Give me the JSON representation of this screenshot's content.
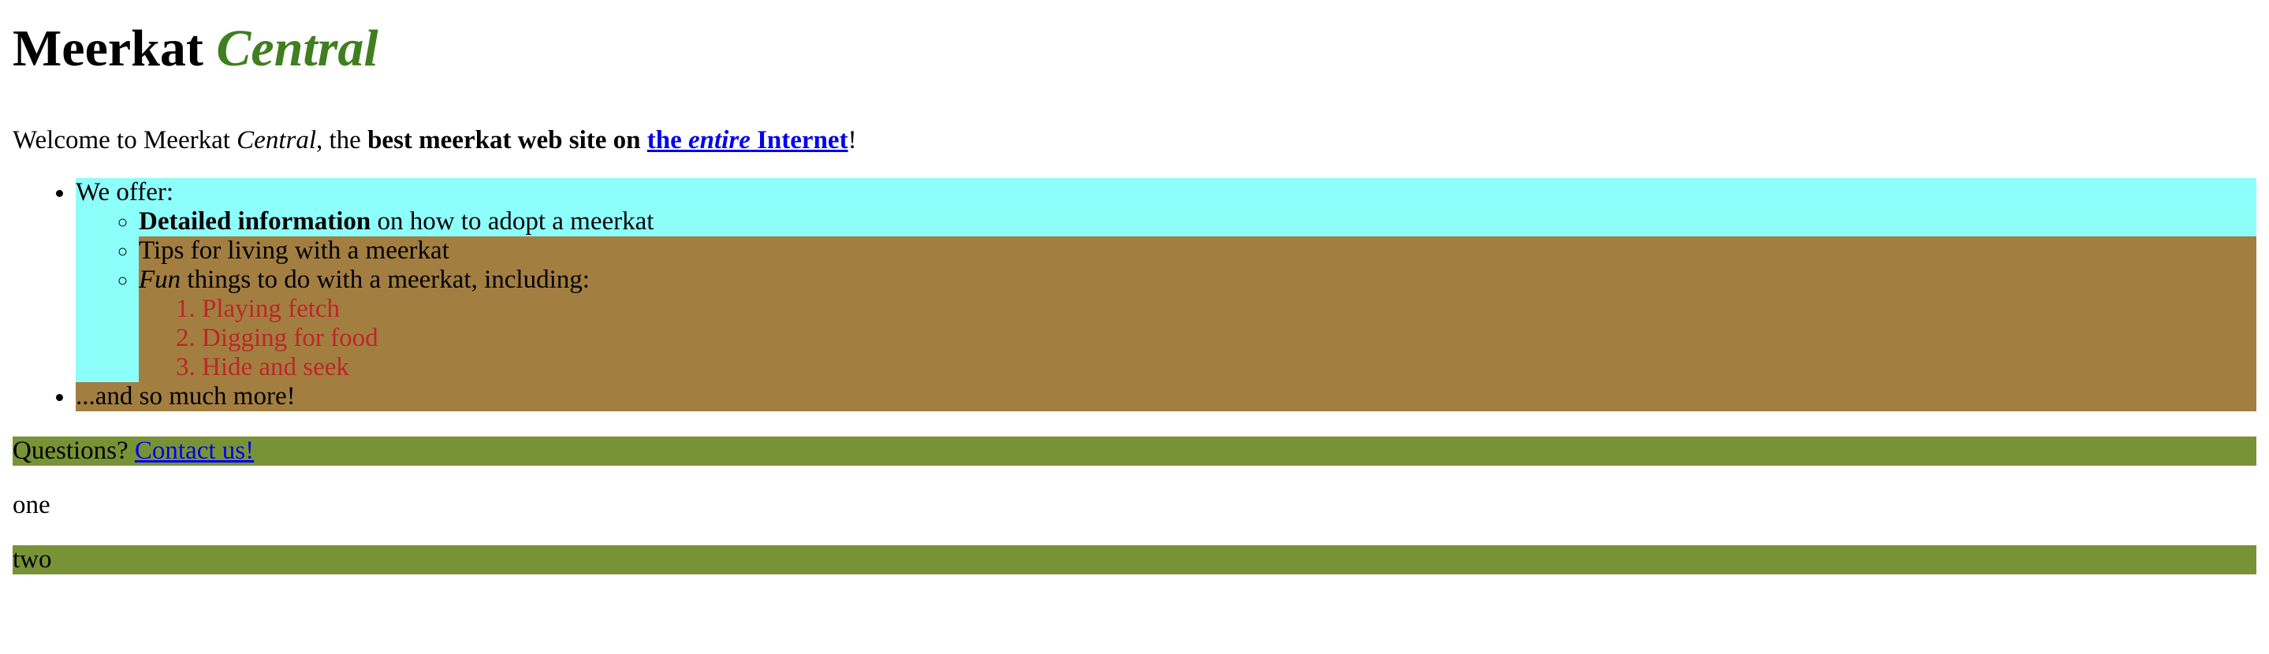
{
  "colors": {
    "accent": "#3f7f1f",
    "cyan": "#8dfffb",
    "brown": "#a37e41",
    "green": "#789336",
    "red": "#bd2727",
    "link": "#0000ee"
  },
  "heading": {
    "main": "Meerkat",
    "accent": "Central"
  },
  "intro": {
    "prefix": "Welcome to Meerkat ",
    "italic": "Central",
    "middle": ", the ",
    "bold": "best meerkat web site on ",
    "link_pre": "the ",
    "link_italic": "entire",
    "link_post": " Internet",
    "suffix": "!"
  },
  "list": {
    "offer_label": "We offer:",
    "sub_items": {
      "detailed_bold": "Detailed information",
      "detailed_rest": " on how to adopt a meerkat",
      "tips": "Tips for living with a meerkat",
      "fun_italic": "Fun",
      "fun_rest": " things to do with a meerkat, including:"
    },
    "activities": [
      "Playing fetch",
      "Digging for food",
      "Hide and seek"
    ],
    "more": "...and so much more!"
  },
  "questions": {
    "label": "Questions? ",
    "link": "Contact us!"
  },
  "one": "one",
  "two": "two"
}
